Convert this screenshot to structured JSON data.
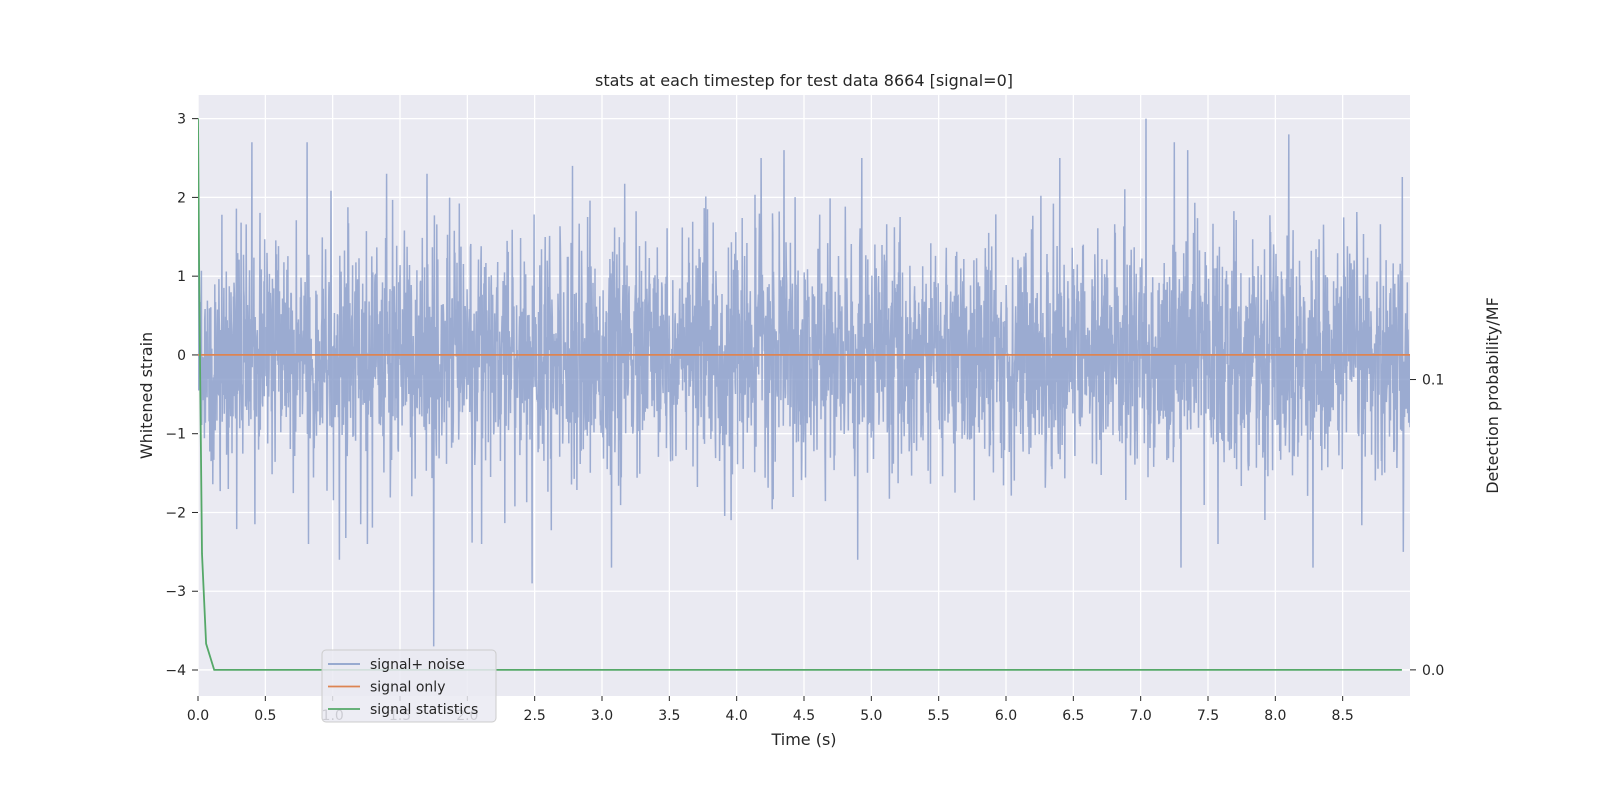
{
  "chart_data": {
    "type": "line",
    "title": "stats at each timestep for test data 8664 [signal=0]",
    "xlabel": "Time (s)",
    "ylabel": "Whitened strain",
    "y2label": "Detection probability/MF",
    "xlim": [
      0.0,
      9.0
    ],
    "ylim": [
      -4.33,
      3.3
    ],
    "y2lim": [
      -0.009,
      0.198
    ],
    "x_ticks": [
      0.0,
      0.5,
      1.0,
      1.5,
      2.0,
      2.5,
      3.0,
      3.5,
      4.0,
      4.5,
      5.0,
      5.5,
      6.0,
      6.5,
      7.0,
      7.5,
      8.0,
      8.5
    ],
    "x_tick_labels": [
      "0.0",
      "0.5",
      "1.0",
      "1.5",
      "2.0",
      "2.5",
      "3.0",
      "3.5",
      "4.0",
      "4.5",
      "5.0",
      "5.5",
      "6.0",
      "6.5",
      "7.0",
      "7.5",
      "8.0",
      "8.5"
    ],
    "y_ticks": [
      3,
      2,
      1,
      0,
      -1,
      -2,
      -3,
      -4
    ],
    "y_tick_labels": [
      "3",
      "2",
      "1",
      "0",
      "−1",
      "−2",
      "−3",
      "−4"
    ],
    "y2_ticks": [
      0.1,
      0.0
    ],
    "y2_tick_labels": [
      "0.1",
      "0.0"
    ],
    "grid": true,
    "legend": {
      "position": "lower-left"
    },
    "series": [
      {
        "name": "signal+ noise",
        "axis": "left",
        "color": "#8da0cb",
        "style": "dense noise trace, approx. uniform 0 to 9 s",
        "x_range": [
          0.0,
          9.0
        ],
        "typical_range": [
          -1.5,
          1.8
        ],
        "peaks": [
          {
            "x": 0.4,
            "y": 2.7
          },
          {
            "x": 0.81,
            "y": 2.7
          },
          {
            "x": 1.4,
            "y": 2.3
          },
          {
            "x": 1.7,
            "y": 2.3
          },
          {
            "x": 2.78,
            "y": 2.4
          },
          {
            "x": 4.18,
            "y": 2.5
          },
          {
            "x": 4.35,
            "y": 2.6
          },
          {
            "x": 4.93,
            "y": 2.5
          },
          {
            "x": 6.4,
            "y": 2.5
          },
          {
            "x": 7.04,
            "y": 3.0
          },
          {
            "x": 7.25,
            "y": 2.7
          },
          {
            "x": 7.35,
            "y": 2.6
          },
          {
            "x": 8.1,
            "y": 2.8
          },
          {
            "x": 0.82,
            "y": -2.4
          },
          {
            "x": 1.05,
            "y": -2.6
          },
          {
            "x": 1.75,
            "y": -3.7
          },
          {
            "x": 2.48,
            "y": -2.9
          },
          {
            "x": 3.07,
            "y": -2.7
          },
          {
            "x": 4.9,
            "y": -2.6
          },
          {
            "x": 7.3,
            "y": -2.7
          },
          {
            "x": 8.28,
            "y": -2.7
          },
          {
            "x": 8.95,
            "y": -2.5
          }
        ]
      },
      {
        "name": "signal only",
        "axis": "left",
        "color": "#dd8452",
        "x": [
          0.0,
          9.0
        ],
        "y": [
          0.0,
          0.0
        ]
      },
      {
        "name": "signal statistics",
        "axis": "right",
        "color": "#55a868",
        "x": [
          0.0,
          0.01,
          0.03,
          0.06,
          0.12,
          0.5,
          1.0,
          2.0,
          3.0,
          4.0,
          5.0,
          6.0,
          7.0,
          8.0,
          8.94
        ],
        "y": [
          0.19,
          0.13,
          0.04,
          0.009,
          0.0,
          0.0,
          0.0,
          0.0,
          0.0,
          0.0,
          0.0,
          0.0,
          0.0,
          0.0,
          0.0
        ]
      }
    ]
  }
}
